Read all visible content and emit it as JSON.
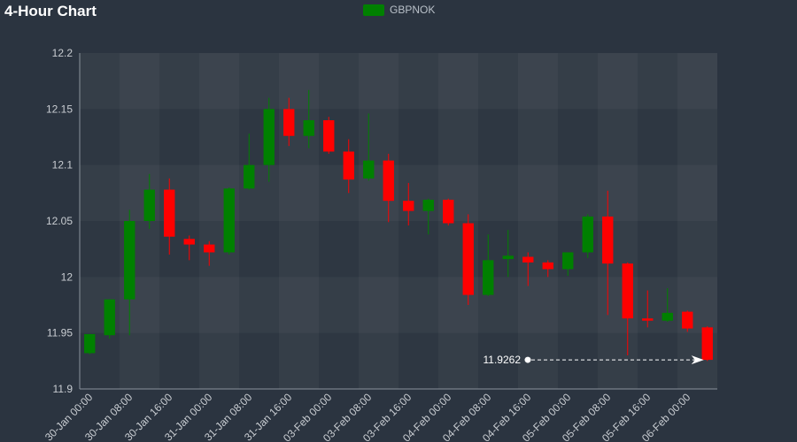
{
  "header": {
    "title": "4-Hour Chart"
  },
  "legend": {
    "label": "GBPNOK",
    "color": "#008000"
  },
  "colors": {
    "up": "#008000",
    "down": "#ff0000",
    "background": "#2b3440",
    "plot_band_light": "#333c47",
    "plot_band_dark": "#2e3742"
  },
  "chart_data": {
    "type": "candlestick",
    "title": "4-Hour Chart",
    "series": [
      {
        "name": "GBPNOK"
      }
    ],
    "ylim": [
      11.9,
      12.2
    ],
    "yticks": [
      11.9,
      11.95,
      12,
      12.05,
      12.1,
      12.15,
      12.2
    ],
    "ytick_labels": [
      "11.9",
      "11.95",
      "12",
      "12.05",
      "12.1",
      "12.15",
      "12.2"
    ],
    "xtick_labels": [
      "30-Jan 00:00",
      "30-Jan 08:00",
      "30-Jan 16:00",
      "31-Jan 00:00",
      "31-Jan 08:00",
      "31-Jan 16:00",
      "03-Feb 00:00",
      "03-Feb 08:00",
      "03-Feb 16:00",
      "04-Feb 00:00",
      "04-Feb 08:00",
      "04-Feb 16:00",
      "05-Feb 00:00",
      "05-Feb 08:00",
      "05-Feb 16:00",
      "06-Feb 00:00"
    ],
    "last_value_label": "11.9262",
    "candles": [
      {
        "o": 11.932,
        "h": 11.949,
        "l": 11.931,
        "c": 11.949
      },
      {
        "o": 11.948,
        "h": 11.98,
        "l": 11.945,
        "c": 11.98
      },
      {
        "o": 11.98,
        "h": 12.06,
        "l": 11.948,
        "c": 12.05
      },
      {
        "o": 12.05,
        "h": 12.092,
        "l": 12.043,
        "c": 12.078
      },
      {
        "o": 12.078,
        "h": 12.088,
        "l": 12.02,
        "c": 12.036
      },
      {
        "o": 12.034,
        "h": 12.037,
        "l": 12.015,
        "c": 12.029
      },
      {
        "o": 12.029,
        "h": 12.032,
        "l": 12.01,
        "c": 12.022
      },
      {
        "o": 12.022,
        "h": 12.08,
        "l": 12.02,
        "c": 12.079
      },
      {
        "o": 12.079,
        "h": 12.128,
        "l": 12.078,
        "c": 12.1
      },
      {
        "o": 12.1,
        "h": 12.16,
        "l": 12.085,
        "c": 12.15
      },
      {
        "o": 12.15,
        "h": 12.16,
        "l": 12.117,
        "c": 12.126
      },
      {
        "o": 12.126,
        "h": 12.167,
        "l": 12.115,
        "c": 12.14
      },
      {
        "o": 12.14,
        "h": 12.143,
        "l": 12.11,
        "c": 12.112
      },
      {
        "o": 12.112,
        "h": 12.123,
        "l": 12.075,
        "c": 12.087
      },
      {
        "o": 12.088,
        "h": 12.146,
        "l": 12.086,
        "c": 12.104
      },
      {
        "o": 12.104,
        "h": 12.11,
        "l": 12.049,
        "c": 12.068
      },
      {
        "o": 12.068,
        "h": 12.084,
        "l": 12.046,
        "c": 12.059
      },
      {
        "o": 12.059,
        "h": 12.07,
        "l": 12.038,
        "c": 12.069
      },
      {
        "o": 12.069,
        "h": 12.07,
        "l": 12.046,
        "c": 12.048
      },
      {
        "o": 12.048,
        "h": 12.056,
        "l": 11.975,
        "c": 11.984
      },
      {
        "o": 11.984,
        "h": 12.038,
        "l": 11.983,
        "c": 12.015
      },
      {
        "o": 12.016,
        "h": 12.042,
        "l": 12.0,
        "c": 12.019
      },
      {
        "o": 12.018,
        "h": 12.022,
        "l": 11.992,
        "c": 12.013
      },
      {
        "o": 12.013,
        "h": 12.015,
        "l": 12.0,
        "c": 12.007
      },
      {
        "o": 12.007,
        "h": 12.022,
        "l": 12.001,
        "c": 12.022
      },
      {
        "o": 12.022,
        "h": 12.056,
        "l": 12.017,
        "c": 12.054
      },
      {
        "o": 12.054,
        "h": 12.077,
        "l": 11.966,
        "c": 12.012
      },
      {
        "o": 12.012,
        "h": 12.013,
        "l": 11.93,
        "c": 11.963
      },
      {
        "o": 11.963,
        "h": 11.988,
        "l": 11.955,
        "c": 11.961
      },
      {
        "o": 11.961,
        "h": 11.99,
        "l": 11.96,
        "c": 11.968
      },
      {
        "o": 11.969,
        "h": 11.97,
        "l": 11.951,
        "c": 11.954
      },
      {
        "o": 11.955,
        "h": 11.956,
        "l": 11.925,
        "c": 11.926
      }
    ]
  }
}
